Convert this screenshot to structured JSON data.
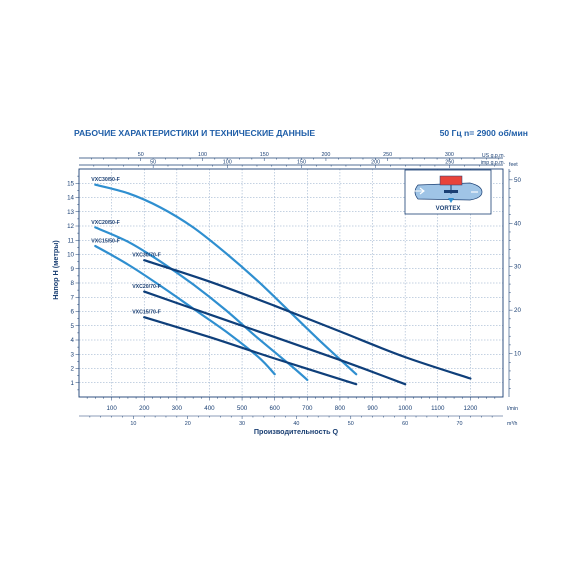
{
  "header": {
    "title": "РАБОЧИЕ ХАРАКТЕРИСТИКИ И ТЕХНИЧЕСКИЕ ДАННЫЕ",
    "spec": "50 Гц   n= 2900 об/мин"
  },
  "inset": {
    "label": "VORTEX",
    "icon": "vortex-impeller-icon"
  },
  "colors": {
    "axis": "#1a3f73",
    "grid": "#8aa4c4",
    "dark_curve": "#0f3f7a",
    "light_curve": "#2f8fd0",
    "title": "#1f5ea8"
  },
  "chart_data": {
    "type": "line",
    "title": "РАБОЧИЕ ХАРАКТЕРИСТИКИ И ТЕХНИЧЕСКИЕ ДАННЫЕ",
    "xlabel": "Производительность Q",
    "ylabel": "Напор H (метры)",
    "xlim": [
      0,
      1300
    ],
    "ylim": [
      0,
      16
    ],
    "x_unit": "l/min",
    "grid": true,
    "x_ticks": [
      100,
      200,
      300,
      400,
      500,
      600,
      700,
      800,
      900,
      1000,
      1100,
      1200
    ],
    "y_ticks": [
      1,
      2,
      3,
      4,
      5,
      6,
      7,
      8,
      9,
      10,
      11,
      12,
      13,
      14,
      15
    ],
    "secondary_axes": {
      "us_gpm": {
        "unit": "US g.p.m.",
        "ticks": [
          50,
          100,
          150,
          200,
          250,
          300
        ],
        "max": 343.4
      },
      "imp_gpm": {
        "unit": "imp g.p.m.",
        "ticks": [
          50,
          100,
          150,
          200,
          250
        ],
        "max": 285.9
      },
      "m3h": {
        "unit": "m³/h",
        "ticks": [
          10,
          20,
          30,
          40,
          50,
          60,
          70
        ],
        "max": 78
      },
      "feet": {
        "unit": "feet",
        "ticks": [
          10,
          20,
          30,
          40,
          50
        ],
        "max": 52.5
      }
    },
    "series": [
      {
        "name": "VXC30/50-F",
        "style": "light",
        "x": [
          50,
          150,
          250,
          350,
          450,
          550,
          650,
          750,
          850
        ],
        "y": [
          14.9,
          14.3,
          13.3,
          11.9,
          10.1,
          8.1,
          5.9,
          3.7,
          1.6
        ]
      },
      {
        "name": "VXC20/50-F",
        "style": "light",
        "x": [
          50,
          150,
          250,
          350,
          450,
          550,
          650,
          700
        ],
        "y": [
          11.9,
          10.9,
          9.5,
          7.9,
          6.1,
          4.1,
          2.2,
          1.2
        ]
      },
      {
        "name": "VXC15/50-F",
        "style": "light",
        "x": [
          50,
          150,
          250,
          350,
          450,
          550,
          600
        ],
        "y": [
          10.6,
          9.3,
          7.8,
          6.2,
          4.6,
          2.8,
          1.6
        ]
      },
      {
        "name": "VXC30/70-F",
        "style": "dark",
        "x": [
          200,
          400,
          600,
          800,
          1000,
          1200
        ],
        "y": [
          9.6,
          8.1,
          6.4,
          4.6,
          2.8,
          1.3
        ]
      },
      {
        "name": "VXC20/70-F",
        "style": "dark",
        "x": [
          200,
          400,
          600,
          800,
          1000
        ],
        "y": [
          7.4,
          5.8,
          4.2,
          2.6,
          0.9
        ]
      },
      {
        "name": "VXC15/70-F",
        "style": "dark",
        "x": [
          200,
          400,
          600,
          850
        ],
        "y": [
          5.6,
          4.2,
          2.7,
          0.9
        ]
      }
    ]
  }
}
